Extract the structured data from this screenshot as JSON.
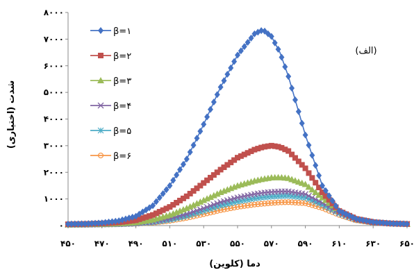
{
  "chart_data": {
    "type": "line",
    "xlabel": "دما (کلوین)",
    "ylabel": "شدت (اختیاری)",
    "annotation": "(الف)",
    "xlim": [
      450,
      650
    ],
    "ylim": [
      0,
      8000
    ],
    "x_ticks": [
      450,
      470,
      490,
      510,
      530,
      550,
      570,
      590,
      610,
      630,
      650
    ],
    "x_tick_labels": [
      "۴۵۰",
      "۴۷۰",
      "۴۹۰",
      "۵۱۰",
      "۵۳۰",
      "۵۵۰",
      "۵۷۰",
      "۵۹۰",
      "۶۱۰",
      "۶۳۰",
      "۶۵۰"
    ],
    "y_ticks": [
      0,
      1000,
      2000,
      3000,
      4000,
      5000,
      6000,
      7000,
      8000
    ],
    "y_tick_labels": [
      "۰",
      "۱۰۰۰",
      "۲۰۰۰",
      "۳۰۰۰",
      "۴۰۰۰",
      "۵۰۰۰",
      "۶۰۰۰",
      "۷۰۰۰",
      "۸۰۰۰"
    ],
    "legend_position": "top-left",
    "x": [
      450,
      460,
      470,
      480,
      490,
      500,
      510,
      520,
      530,
      540,
      550,
      560,
      565,
      570,
      575,
      580,
      590,
      600,
      610,
      620,
      630,
      640,
      650
    ],
    "series": [
      {
        "name": "β=۱",
        "color": "#4472C4",
        "marker": "diamond",
        "values": [
          60,
          70,
          100,
          180,
          350,
          750,
          1500,
          2500,
          3800,
          5200,
          6400,
          7200,
          7350,
          7100,
          6500,
          5600,
          3400,
          1500,
          550,
          250,
          130,
          80,
          60
        ]
      },
      {
        "name": "β=۲",
        "color": "#C0504D",
        "marker": "square",
        "values": [
          50,
          60,
          80,
          120,
          200,
          400,
          700,
          1100,
          1600,
          2100,
          2550,
          2850,
          2950,
          3000,
          2950,
          2800,
          2150,
          1250,
          550,
          250,
          130,
          80,
          60
        ]
      },
      {
        "name": "β=۳",
        "color": "#9BBB59",
        "marker": "triangle",
        "values": [
          40,
          50,
          60,
          80,
          120,
          220,
          400,
          650,
          950,
          1250,
          1500,
          1680,
          1750,
          1800,
          1810,
          1780,
          1550,
          1050,
          550,
          250,
          130,
          80,
          60
        ]
      },
      {
        "name": "β=۴",
        "color": "#8064A2",
        "marker": "x",
        "values": [
          35,
          40,
          50,
          60,
          90,
          150,
          260,
          430,
          650,
          880,
          1050,
          1180,
          1230,
          1260,
          1280,
          1280,
          1180,
          850,
          480,
          230,
          120,
          80,
          60
        ]
      },
      {
        "name": "β=۵",
        "color": "#4BACC6",
        "marker": "star",
        "values": [
          30,
          35,
          45,
          55,
          80,
          130,
          220,
          360,
          550,
          750,
          900,
          1020,
          1060,
          1090,
          1110,
          1120,
          1050,
          780,
          450,
          220,
          120,
          80,
          60
        ]
      },
      {
        "name": "β=۶",
        "color": "#F79646",
        "marker": "circle",
        "values": [
          25,
          30,
          40,
          50,
          70,
          110,
          180,
          290,
          430,
          580,
          700,
          790,
          820,
          850,
          870,
          880,
          840,
          660,
          400,
          200,
          110,
          70,
          50
        ]
      }
    ]
  }
}
